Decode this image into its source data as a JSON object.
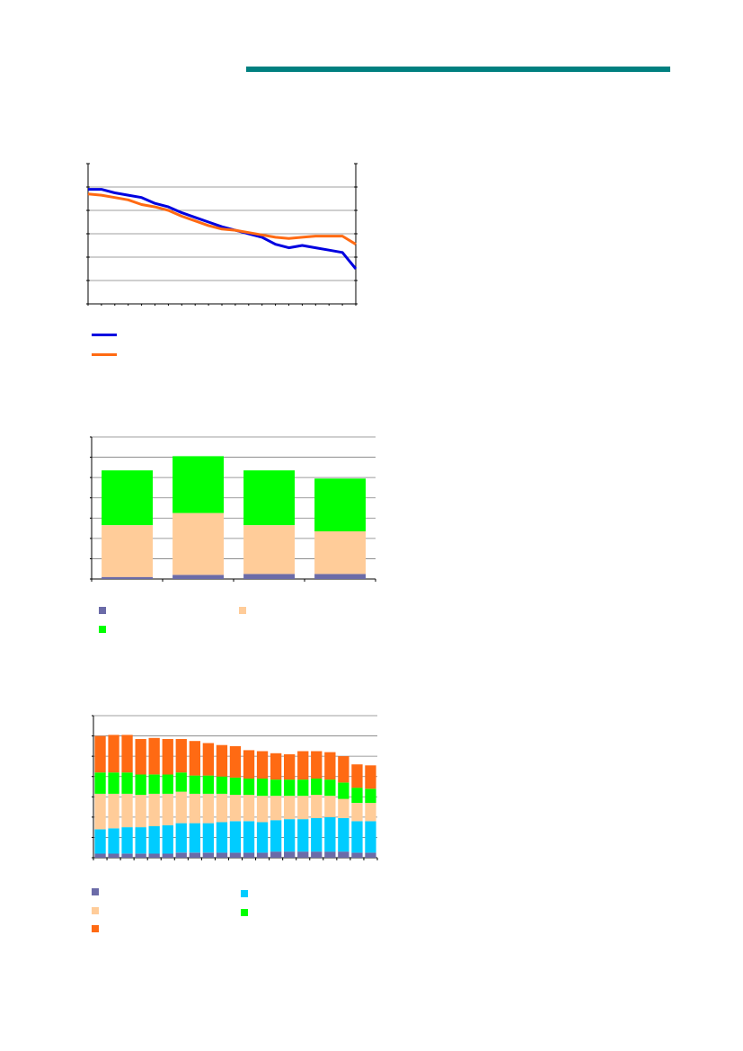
{
  "page": {
    "rule_color": "#008080"
  },
  "chart_data": [
    {
      "type": "line",
      "title": "",
      "xlabel": "",
      "ylabel": "",
      "ylim": [
        0,
        6
      ],
      "grid": true,
      "x": [
        1,
        2,
        3,
        4,
        5,
        6,
        7,
        8,
        9,
        10,
        11,
        12,
        13,
        14,
        15,
        16,
        17,
        18,
        19,
        20,
        21
      ],
      "series": [
        {
          "color": "#0000e0",
          "values": [
            4.9,
            4.9,
            4.75,
            4.65,
            4.55,
            4.3,
            4.15,
            3.9,
            3.7,
            3.5,
            3.3,
            3.15,
            3.0,
            2.85,
            2.55,
            2.4,
            2.5,
            2.4,
            2.3,
            2.2,
            1.5
          ]
        },
        {
          "color": "#ff6a13",
          "values": [
            4.7,
            4.65,
            4.55,
            4.45,
            4.25,
            4.15,
            4.0,
            3.75,
            3.55,
            3.35,
            3.2,
            3.15,
            3.05,
            2.95,
            2.85,
            2.8,
            2.85,
            2.9,
            2.9,
            2.9,
            2.55
          ]
        }
      ]
    },
    {
      "type": "bar",
      "stacked": true,
      "title": "",
      "xlabel": "",
      "ylabel": "",
      "ylim": [
        0,
        7
      ],
      "grid": true,
      "categories": [
        "",
        "",
        "",
        ""
      ],
      "series": [
        {
          "color": "#6b6ba8",
          "values": [
            0.1,
            0.2,
            0.25,
            0.25
          ]
        },
        {
          "color": "#ffcc99",
          "values": [
            2.55,
            3.05,
            2.4,
            2.1
          ]
        },
        {
          "color": "#00ff00",
          "values": [
            2.7,
            2.8,
            2.7,
            2.6
          ]
        }
      ]
    },
    {
      "type": "bar",
      "stacked": true,
      "title": "",
      "xlabel": "",
      "ylabel": "",
      "ylim": [
        0,
        7
      ],
      "grid": true,
      "categories": [
        "",
        "",
        "",
        "",
        "",
        "",
        "",
        "",
        "",
        "",
        "",
        "",
        "",
        "",
        "",
        "",
        "",
        "",
        "",
        "",
        ""
      ],
      "series": [
        {
          "color": "#6b6ba8",
          "values": [
            0.2,
            0.2,
            0.2,
            0.2,
            0.2,
            0.2,
            0.25,
            0.25,
            0.25,
            0.25,
            0.25,
            0.25,
            0.25,
            0.3,
            0.3,
            0.3,
            0.3,
            0.3,
            0.3,
            0.25,
            0.25
          ]
        },
        {
          "color": "#00ccff",
          "values": [
            1.2,
            1.25,
            1.3,
            1.3,
            1.35,
            1.4,
            1.45,
            1.45,
            1.45,
            1.5,
            1.55,
            1.55,
            1.5,
            1.55,
            1.6,
            1.6,
            1.65,
            1.7,
            1.65,
            1.55,
            1.55
          ]
        },
        {
          "color": "#ffcc99",
          "values": [
            1.75,
            1.7,
            1.65,
            1.6,
            1.6,
            1.55,
            1.55,
            1.45,
            1.45,
            1.4,
            1.3,
            1.3,
            1.3,
            1.2,
            1.15,
            1.15,
            1.15,
            1.05,
            0.95,
            0.9,
            0.9
          ]
        },
        {
          "color": "#00ff00",
          "values": [
            1.05,
            1.05,
            1.05,
            1.0,
            0.95,
            0.95,
            0.95,
            0.9,
            0.9,
            0.85,
            0.85,
            0.8,
            0.85,
            0.8,
            0.8,
            0.8,
            0.8,
            0.8,
            0.8,
            0.75,
            0.7
          ]
        },
        {
          "color": "#ff6a13",
          "values": [
            1.8,
            1.85,
            1.85,
            1.75,
            1.8,
            1.75,
            1.65,
            1.7,
            1.6,
            1.55,
            1.55,
            1.4,
            1.35,
            1.3,
            1.25,
            1.4,
            1.35,
            1.35,
            1.3,
            1.15,
            1.15
          ]
        }
      ]
    }
  ],
  "legends": {
    "chart1": [
      {
        "color": "#0000e0",
        "label": ""
      },
      {
        "color": "#ff6a13",
        "label": ""
      }
    ],
    "chart2": [
      {
        "color": "#6b6ba8",
        "label": ""
      },
      {
        "color": "#ffcc99",
        "label": ""
      },
      {
        "color": "#00ff00",
        "label": ""
      }
    ],
    "chart3": [
      {
        "color": "#6b6ba8",
        "label": ""
      },
      {
        "color": "#00ccff",
        "label": ""
      },
      {
        "color": "#ffcc99",
        "label": ""
      },
      {
        "color": "#00ff00",
        "label": ""
      },
      {
        "color": "#ff6a13",
        "label": ""
      }
    ]
  }
}
